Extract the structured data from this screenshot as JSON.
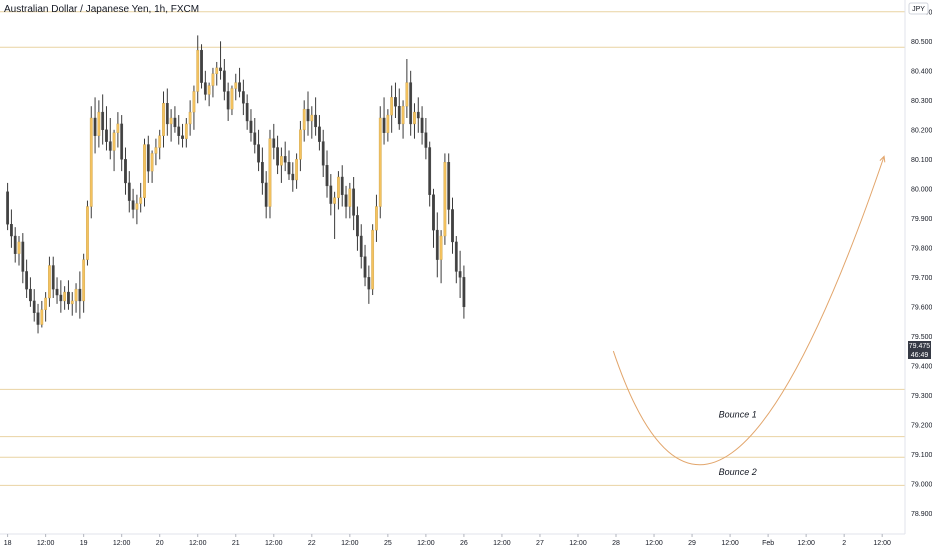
{
  "chart_data": {
    "type": "candlestick",
    "title": "Australian Dollar / Japanese Yen, 1h, FXCM",
    "currency_label": "JPY",
    "y_ticks": [
      "80.600",
      "80.500",
      "80.400",
      "80.300",
      "80.200",
      "80.100",
      "80.000",
      "79.900",
      "79.800",
      "79.700",
      "79.600",
      "79.500",
      "79.400",
      "79.300",
      "79.200",
      "79.100",
      "79.000",
      "78.900"
    ],
    "ylim": [
      78.83,
      80.64
    ],
    "x_ticks": [
      {
        "label": "18",
        "pos": 0
      },
      {
        "label": "12:00",
        "pos": 10
      },
      {
        "label": "19",
        "pos": 20
      },
      {
        "label": "12:00",
        "pos": 30
      },
      {
        "label": "20",
        "pos": 40
      },
      {
        "label": "12:00",
        "pos": 50
      },
      {
        "label": "21",
        "pos": 60
      },
      {
        "label": "12:00",
        "pos": 70
      },
      {
        "label": "22",
        "pos": 80
      },
      {
        "label": "12:00",
        "pos": 90
      },
      {
        "label": "25",
        "pos": 100
      },
      {
        "label": "12:00",
        "pos": 110
      },
      {
        "label": "26",
        "pos": 120
      },
      {
        "label": "12:00",
        "pos": 130
      },
      {
        "label": "27",
        "pos": 140
      },
      {
        "label": "12:00",
        "pos": 150
      },
      {
        "label": "28",
        "pos": 160
      },
      {
        "label": "12:00",
        "pos": 170
      },
      {
        "label": "29",
        "pos": 180
      },
      {
        "label": "12:00",
        "pos": 190
      },
      {
        "label": "Feb",
        "pos": 200
      },
      {
        "label": "12:00",
        "pos": 210
      },
      {
        "label": "2",
        "pos": 220
      },
      {
        "label": "12:00",
        "pos": 230
      }
    ],
    "xlim": [
      -2,
      236
    ],
    "horizontal_levels": [
      80.6,
      80.48,
      79.32,
      79.16,
      79.09,
      78.995
    ],
    "price_badge": {
      "value": "79.475",
      "countdown": "46:49"
    },
    "candles": [
      [
        79.99,
        80.02,
        79.86,
        79.88
      ],
      [
        79.88,
        79.93,
        79.8,
        79.84
      ],
      [
        79.84,
        79.87,
        79.75,
        79.78
      ],
      [
        79.78,
        79.84,
        79.74,
        79.82
      ],
      [
        79.82,
        79.85,
        79.68,
        79.72
      ],
      [
        79.72,
        79.76,
        79.63,
        79.66
      ],
      [
        79.66,
        79.7,
        79.6,
        79.62
      ],
      [
        79.62,
        79.66,
        79.55,
        79.58
      ],
      [
        79.58,
        79.61,
        79.51,
        79.54
      ],
      [
        79.54,
        79.62,
        79.53,
        79.59
      ],
      [
        79.59,
        79.65,
        79.55,
        79.63
      ],
      [
        79.63,
        79.77,
        79.6,
        79.74
      ],
      [
        79.74,
        79.77,
        79.63,
        79.66
      ],
      [
        79.66,
        79.7,
        79.61,
        79.64
      ],
      [
        79.64,
        79.69,
        79.58,
        79.62
      ],
      [
        79.62,
        79.67,
        79.59,
        79.65
      ],
      [
        79.65,
        79.69,
        79.59,
        79.61
      ],
      [
        79.61,
        79.65,
        79.57,
        79.62
      ],
      [
        79.62,
        79.68,
        79.58,
        79.66
      ],
      [
        79.66,
        79.72,
        79.56,
        79.62
      ],
      [
        79.62,
        79.78,
        79.58,
        79.76
      ],
      [
        79.76,
        79.96,
        79.74,
        79.94
      ],
      [
        79.94,
        80.28,
        79.9,
        80.24
      ],
      [
        80.24,
        80.31,
        80.12,
        80.18
      ],
      [
        80.18,
        80.3,
        80.14,
        80.26
      ],
      [
        80.26,
        80.32,
        80.15,
        80.2
      ],
      [
        80.2,
        80.28,
        80.13,
        80.16
      ],
      [
        80.16,
        80.24,
        80.1,
        80.13
      ],
      [
        80.13,
        80.2,
        80.06,
        80.19
      ],
      [
        80.19,
        80.26,
        80.14,
        80.22
      ],
      [
        80.22,
        80.25,
        80.06,
        80.1
      ],
      [
        80.1,
        80.14,
        79.98,
        80.02
      ],
      [
        80.02,
        80.06,
        79.92,
        79.96
      ],
      [
        79.96,
        80.0,
        79.9,
        79.93
      ],
      [
        79.93,
        79.98,
        79.88,
        79.95
      ],
      [
        79.95,
        80.02,
        79.92,
        79.97
      ],
      [
        79.97,
        80.17,
        79.94,
        80.15
      ],
      [
        80.15,
        80.18,
        80.02,
        80.06
      ],
      [
        80.06,
        80.13,
        80.02,
        80.12
      ],
      [
        80.12,
        80.17,
        80.08,
        80.14
      ],
      [
        80.14,
        80.2,
        80.1,
        80.18
      ],
      [
        80.18,
        80.33,
        80.14,
        80.29
      ],
      [
        80.29,
        80.34,
        80.18,
        80.22
      ],
      [
        80.22,
        80.27,
        80.16,
        80.24
      ],
      [
        80.24,
        80.28,
        80.19,
        80.21
      ],
      [
        80.21,
        80.25,
        80.15,
        80.18
      ],
      [
        80.18,
        80.22,
        80.14,
        80.17
      ],
      [
        80.17,
        80.24,
        80.14,
        80.22
      ],
      [
        80.22,
        80.3,
        80.18,
        80.26
      ],
      [
        80.26,
        80.35,
        80.2,
        80.33
      ],
      [
        80.33,
        80.52,
        80.29,
        80.47
      ],
      [
        80.47,
        80.49,
        80.34,
        80.36
      ],
      [
        80.36,
        80.4,
        80.3,
        80.32
      ],
      [
        80.32,
        80.36,
        80.28,
        80.35
      ],
      [
        80.35,
        80.41,
        80.31,
        80.39
      ],
      [
        80.39,
        80.43,
        80.35,
        80.41
      ],
      [
        80.41,
        80.5,
        80.37,
        80.4
      ],
      [
        80.4,
        80.44,
        80.3,
        80.33
      ],
      [
        80.33,
        80.36,
        80.23,
        80.27
      ],
      [
        80.27,
        80.35,
        80.25,
        80.34
      ],
      [
        80.34,
        80.39,
        80.3,
        80.36
      ],
      [
        80.36,
        80.41,
        80.31,
        80.33
      ],
      [
        80.33,
        80.37,
        80.25,
        80.29
      ],
      [
        80.29,
        80.32,
        80.2,
        80.23
      ],
      [
        80.23,
        80.27,
        80.16,
        80.19
      ],
      [
        80.19,
        80.24,
        80.12,
        80.15
      ],
      [
        80.15,
        80.2,
        80.06,
        80.09
      ],
      [
        80.09,
        80.14,
        79.98,
        80.02
      ],
      [
        80.02,
        80.06,
        79.9,
        79.94
      ],
      [
        79.94,
        80.2,
        79.9,
        80.17
      ],
      [
        80.17,
        80.22,
        80.1,
        80.14
      ],
      [
        80.14,
        80.18,
        80.05,
        80.08
      ],
      [
        80.08,
        80.14,
        80.02,
        80.11
      ],
      [
        80.11,
        80.16,
        80.06,
        80.09
      ],
      [
        80.09,
        80.13,
        80.03,
        80.05
      ],
      [
        80.05,
        80.09,
        79.99,
        80.03
      ],
      [
        80.03,
        80.12,
        80.0,
        80.1
      ],
      [
        80.1,
        80.23,
        80.06,
        80.2
      ],
      [
        80.2,
        80.3,
        80.16,
        80.27
      ],
      [
        80.27,
        80.33,
        80.18,
        80.23
      ],
      [
        80.23,
        80.28,
        80.17,
        80.25
      ],
      [
        80.25,
        80.31,
        80.18,
        80.21
      ],
      [
        80.21,
        80.25,
        80.13,
        80.16
      ],
      [
        80.16,
        80.2,
        80.04,
        80.08
      ],
      [
        80.08,
        80.13,
        79.97,
        80.01
      ],
      [
        80.01,
        80.05,
        79.91,
        79.95
      ],
      [
        79.95,
        79.99,
        79.83,
        79.97
      ],
      [
        79.97,
        80.06,
        79.93,
        80.04
      ],
      [
        80.04,
        80.08,
        79.94,
        79.98
      ],
      [
        79.98,
        80.01,
        79.9,
        79.94
      ],
      [
        79.94,
        80.02,
        79.9,
        80.0
      ],
      [
        80.0,
        80.04,
        79.86,
        79.91
      ],
      [
        79.91,
        79.94,
        79.79,
        79.84
      ],
      [
        79.84,
        79.88,
        79.73,
        79.77
      ],
      [
        79.77,
        79.81,
        79.67,
        79.7
      ],
      [
        79.7,
        79.74,
        79.61,
        79.66
      ],
      [
        79.66,
        79.88,
        79.64,
        79.86
      ],
      [
        79.86,
        79.98,
        79.82,
        79.94
      ],
      [
        79.94,
        80.28,
        79.9,
        80.24
      ],
      [
        80.24,
        80.31,
        80.15,
        80.19
      ],
      [
        80.19,
        80.27,
        80.16,
        80.25
      ],
      [
        80.25,
        80.35,
        80.19,
        80.31
      ],
      [
        80.31,
        80.36,
        80.24,
        80.28
      ],
      [
        80.28,
        80.34,
        80.2,
        80.22
      ],
      [
        80.22,
        80.3,
        80.17,
        80.28
      ],
      [
        80.28,
        80.44,
        80.24,
        80.36
      ],
      [
        80.36,
        80.4,
        80.18,
        80.22
      ],
      [
        80.22,
        80.29,
        80.17,
        80.26
      ],
      [
        80.26,
        80.31,
        80.19,
        80.24
      ],
      [
        80.24,
        80.28,
        80.15,
        80.19
      ],
      [
        80.19,
        80.24,
        80.1,
        80.14
      ],
      [
        80.14,
        80.16,
        79.94,
        79.98
      ],
      [
        79.98,
        80.0,
        79.8,
        79.86
      ],
      [
        79.86,
        79.92,
        79.7,
        79.76
      ],
      [
        79.76,
        79.86,
        79.68,
        79.84
      ],
      [
        79.84,
        80.12,
        79.81,
        80.09
      ],
      [
        80.09,
        80.12,
        79.88,
        79.93
      ],
      [
        79.93,
        79.97,
        79.78,
        79.82
      ],
      [
        79.82,
        79.84,
        79.68,
        79.72
      ],
      [
        79.72,
        79.79,
        79.63,
        79.7
      ],
      [
        79.7,
        79.74,
        79.56,
        79.6
      ]
    ],
    "forecast_curve": {
      "start": [
        159.3,
        79.45
      ],
      "control": [
        186,
        78.43
      ],
      "end": [
        230.5,
        80.11
      ]
    },
    "annotations": [
      {
        "text": "Bounce 1",
        "x": 192,
        "y": 79.235
      },
      {
        "text": "Bounce 2",
        "x": 192,
        "y": 79.04
      }
    ],
    "colors": {
      "up": "#f4c25f",
      "down": "#414141",
      "wick": "#3a3a3a",
      "level_line": "#e9d3a2",
      "forecast": "#e2a56b",
      "badge": "#363a45",
      "text": "#131722"
    }
  }
}
